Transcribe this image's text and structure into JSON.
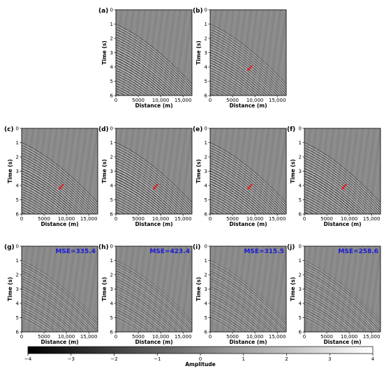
{
  "figure": {
    "axis": {
      "xlabel": "Distance (m)",
      "ylabel": "Time (s)",
      "xticks": [
        "0",
        "5000",
        "10,000",
        "15,000"
      ],
      "yticks": [
        "0",
        "1",
        "2",
        "3",
        "4",
        "5",
        "6"
      ],
      "xlim": [
        0,
        17000
      ],
      "ylim": [
        6,
        0
      ]
    },
    "panels": [
      {
        "id": "a",
        "label": "(a)",
        "arrow": false,
        "mse": "",
        "variant": "observed"
      },
      {
        "id": "b",
        "label": "(b)",
        "arrow": true,
        "mse": "",
        "variant": "sparse"
      },
      {
        "id": "c",
        "label": "(c)",
        "arrow": true,
        "mse": "",
        "variant": "recon"
      },
      {
        "id": "d",
        "label": "(d)",
        "arrow": true,
        "mse": "",
        "variant": "recon"
      },
      {
        "id": "e",
        "label": "(e)",
        "arrow": true,
        "mse": "",
        "variant": "recon"
      },
      {
        "id": "f",
        "label": "(f)",
        "arrow": true,
        "mse": "",
        "variant": "recon"
      },
      {
        "id": "g",
        "label": "(g)",
        "arrow": false,
        "mse": "MSE=335.4",
        "variant": "residual"
      },
      {
        "id": "h",
        "label": "(h)",
        "arrow": false,
        "mse": "MSE=423.4",
        "variant": "residual"
      },
      {
        "id": "i",
        "label": "(i)",
        "arrow": false,
        "mse": "MSE=315.5",
        "variant": "residual"
      },
      {
        "id": "j",
        "label": "(j)",
        "arrow": false,
        "mse": "MSE=258.6",
        "variant": "residual"
      }
    ],
    "colorbar": {
      "label": "Amplitude",
      "ticks": [
        "−4",
        "−3",
        "−2",
        "−1",
        "0",
        "1",
        "2",
        "3",
        "4"
      ],
      "range": [
        -4,
        4
      ],
      "colormap": "gray"
    },
    "colors": {
      "arrow": "#e21b1b",
      "mse_text": "#1a1ad6",
      "background_gray": "#808080"
    }
  }
}
